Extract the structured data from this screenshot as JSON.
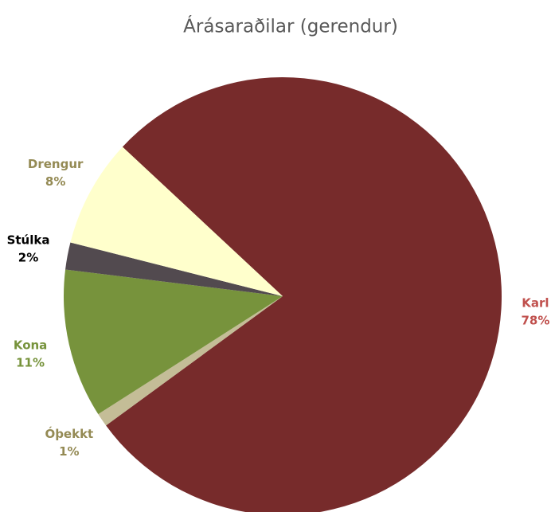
{
  "chart_data": {
    "type": "pie",
    "title": "Árásaraðilar (gerendur)",
    "categories": [
      "Karl",
      "Óþekkt",
      "Kona",
      "Stúlka",
      "Drengur"
    ],
    "values": [
      78,
      1,
      11,
      2,
      8
    ],
    "value_labels": [
      "78%",
      "1%",
      "11%",
      "2%",
      "8%"
    ],
    "colors": [
      "#772b2b",
      "#c4bd97",
      "#77933c",
      "#524a4f",
      "#ffffcc"
    ],
    "label_colors": [
      "#c0504d",
      "#948a54",
      "#77933c",
      "#000000",
      "#948a54"
    ]
  }
}
